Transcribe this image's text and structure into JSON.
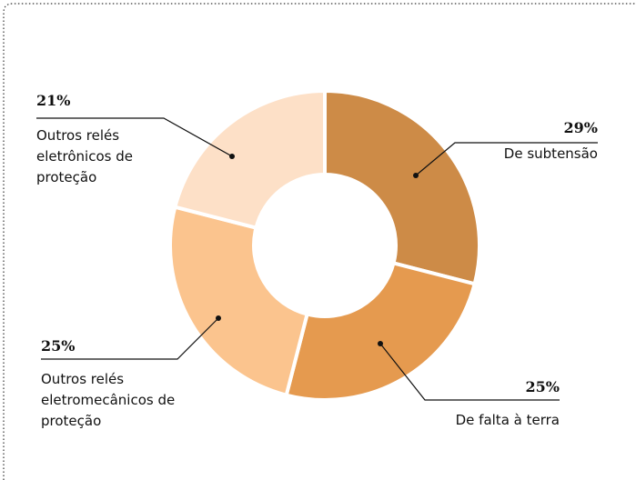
{
  "chart_data": {
    "type": "donut",
    "categories": [
      "De subtensão",
      "De falta à terra",
      "Outros relés eletromecânicos de proteção",
      "Outros relés eletrônicos de proteção"
    ],
    "values": [
      29,
      25,
      25,
      21
    ],
    "value_labels": [
      "29%",
      "25%",
      "25%",
      "21%"
    ],
    "colors": [
      "#cd8b47",
      "#e59a4f",
      "#fbc48e",
      "#fde0c7"
    ]
  }
}
